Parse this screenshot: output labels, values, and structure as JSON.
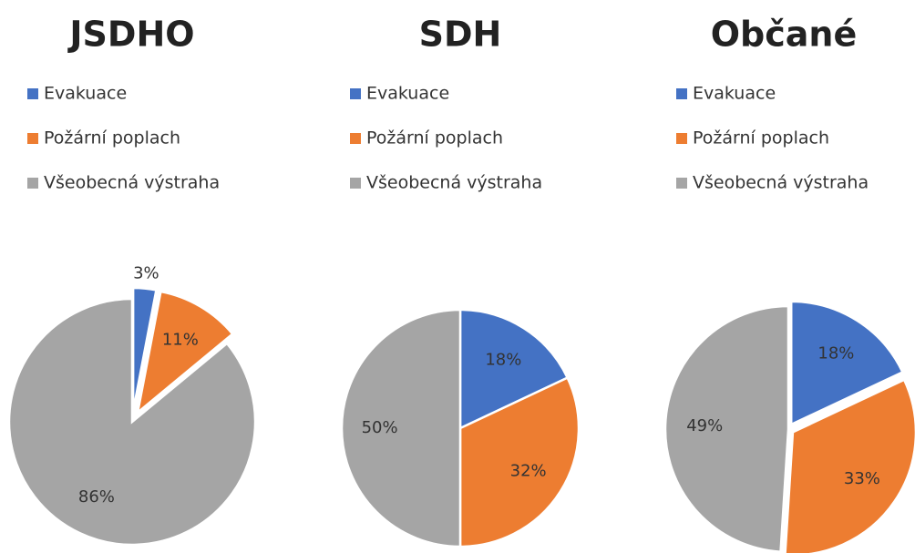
{
  "chart_data": [
    {
      "type": "pie",
      "title": "JSDHO",
      "categories": [
        "Evakuace",
        "Požární poplach",
        "Všeobecná výstraha"
      ],
      "values": [
        3,
        11,
        86
      ],
      "value_labels": [
        "3%",
        "11%",
        "86%"
      ],
      "colors": [
        "#4472c4",
        "#ed7d31",
        "#a5a5a5"
      ],
      "legend": "top-left"
    },
    {
      "type": "pie",
      "title": "SDH",
      "categories": [
        "Evakuace",
        "Požární poplach",
        "Všeobecná výstraha"
      ],
      "values": [
        18,
        32,
        50
      ],
      "value_labels": [
        "18%",
        "32%",
        "50%"
      ],
      "colors": [
        "#4472c4",
        "#ed7d31",
        "#a5a5a5"
      ],
      "legend": "top-left"
    },
    {
      "type": "pie",
      "title": "Občané",
      "categories": [
        "Evakuace",
        "Požární poplach",
        "Všeobecná výstraha"
      ],
      "values": [
        18,
        33,
        49
      ],
      "value_labels": [
        "18%",
        "33%",
        "49%"
      ],
      "colors": [
        "#4472c4",
        "#ed7d31",
        "#a5a5a5"
      ],
      "legend": "top-left"
    }
  ]
}
